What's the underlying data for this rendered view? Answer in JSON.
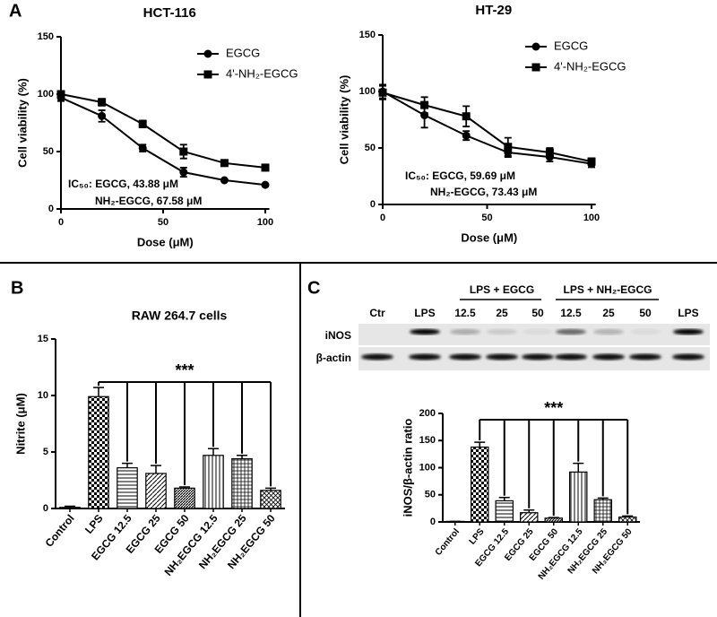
{
  "panel_labels": [
    "A",
    "B",
    "C"
  ],
  "blot": {
    "lanes": [
      "Ctr",
      "LPS",
      "12.5",
      "25",
      "50",
      "12.5",
      "25",
      "50",
      "LPS"
    ],
    "groups": [
      "LPS + EGCG",
      "LPS + NH₂-EGCG"
    ],
    "rows": [
      "iNOS",
      "β-actin"
    ]
  },
  "chart_data": [
    {
      "type": "line",
      "title": "HCT-116",
      "xlabel": "Dose (μM)",
      "ylabel": "Cell viability (%)",
      "x": [
        0,
        20,
        40,
        60,
        80,
        100
      ],
      "xlim": [
        0,
        102
      ],
      "ylim": [
        0,
        150
      ],
      "xticks": [
        0,
        50,
        100
      ],
      "yticks": [
        0,
        50,
        100,
        150
      ],
      "legend": "upper right",
      "series": [
        {
          "name": "EGCG",
          "color": "#000000",
          "marker": "circle",
          "values": [
            97,
            81,
            53,
            32,
            25,
            21
          ],
          "errors": [
            3,
            5,
            3,
            4,
            1,
            1
          ]
        },
        {
          "name": "4'-NH₂-EGCG",
          "color": "#000000",
          "marker": "square",
          "values": [
            100,
            93,
            74,
            50,
            40,
            36
          ],
          "errors": [
            2,
            3,
            3,
            6,
            2,
            2
          ]
        }
      ],
      "annotations": [
        "IC₅₀: EGCG, 43.88 μM",
        "NH₂-EGCG, 67.58 μM"
      ]
    },
    {
      "type": "line",
      "title": "HT-29",
      "xlabel": "Dose (μM)",
      "ylabel": "Cell viability (%)",
      "x": [
        0,
        20,
        40,
        60,
        80,
        100
      ],
      "xlim": [
        0,
        102
      ],
      "ylim": [
        0,
        150
      ],
      "xticks": [
        0,
        50,
        100
      ],
      "yticks": [
        0,
        50,
        100,
        150
      ],
      "legend": "upper right",
      "series": [
        {
          "name": "EGCG",
          "color": "#000000",
          "marker": "circle",
          "values": [
            100,
            79,
            61,
            46,
            42,
            36
          ],
          "errors": [
            6,
            11,
            4,
            4,
            4,
            3
          ]
        },
        {
          "name": "4'-NH₂-EGCG",
          "color": "#000000",
          "marker": "square",
          "values": [
            99,
            88,
            78,
            51,
            46,
            38
          ],
          "errors": [
            6,
            7,
            9,
            8,
            4,
            3
          ]
        }
      ],
      "annotations": [
        "IC₅₀: EGCG, 59.69 μM",
        "NH₂-EGCG, 73.43 μM"
      ]
    },
    {
      "type": "bar",
      "title": "RAW 264.7 cells",
      "ylabel": "Nitrite (μM)",
      "categories": [
        "Control",
        "LPS",
        "EGCG 12.5",
        "EGCG 25",
        "EGCG 50",
        "NH₂EGCG 12.5",
        "NH₂EGCG 25",
        "NH₂EGCG 50"
      ],
      "values": [
        0.1,
        9.9,
        3.6,
        3.1,
        1.8,
        4.7,
        4.4,
        1.6
      ],
      "errors": [
        0.1,
        0.8,
        0.4,
        0.7,
        0.1,
        0.6,
        0.3,
        0.2
      ],
      "color": "#000000",
      "ylim": [
        0,
        15
      ],
      "yticks": [
        0,
        5,
        10,
        15
      ],
      "annotations": [
        "***"
      ]
    },
    {
      "type": "bar",
      "ylabel": "iNOS/β-actin ratio",
      "categories": [
        "Control",
        "LPS",
        "EGCG 12.5",
        "EGCG 25",
        "EGCG 50",
        "NH₂EGCG 12.5",
        "NH₂EGCG 25",
        "NH₂EGCG 50"
      ],
      "values": [
        1,
        138,
        39,
        17,
        7,
        92,
        41,
        9
      ],
      "errors": [
        0,
        9,
        6,
        5,
        1,
        16,
        3,
        2
      ],
      "color": "#000000",
      "ylim": [
        0,
        200
      ],
      "yticks": [
        0,
        50,
        100,
        150,
        200
      ],
      "annotations": [
        "***"
      ]
    }
  ]
}
